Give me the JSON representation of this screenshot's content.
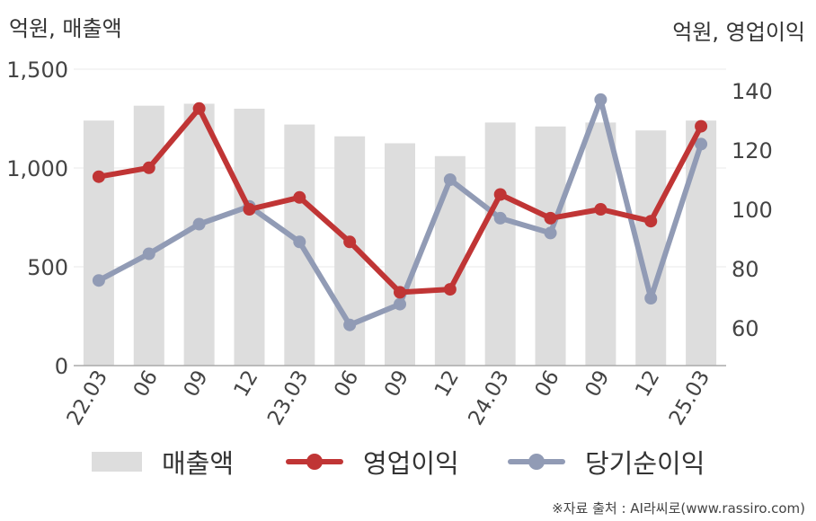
{
  "unit_left": "억원, 매출액",
  "unit_right": "억원, 영업이익",
  "source": "※자료 출처 : AI라씨로(www.rassiro.com)",
  "colors": {
    "revenue": "#dddddd",
    "operating_profit": "#c03535",
    "net_income": "#919bb5",
    "grid": "#e8e8e8",
    "axis": "#aaaaaa",
    "tick_text": "#444444"
  },
  "chart_data": {
    "type": "bar+line",
    "categories": [
      "22.03",
      "06",
      "09",
      "12",
      "23.03",
      "06",
      "09",
      "12",
      "24.03",
      "06",
      "09",
      "12",
      "25.03"
    ],
    "y_left": {
      "ticks": [
        "0",
        "500",
        "1,000",
        "1,500"
      ],
      "range": [
        0,
        1500
      ]
    },
    "y_right": {
      "ticks": [
        "60",
        "80",
        "100",
        "120",
        "140"
      ],
      "range": [
        50,
        150
      ]
    },
    "series": [
      {
        "name": "매출액",
        "type": "bar",
        "axis": "left",
        "values": [
          1240,
          1315,
          1325,
          1300,
          1220,
          1160,
          1125,
          1060,
          1230,
          1210,
          1230,
          1190,
          1240
        ]
      },
      {
        "name": "영업이익",
        "type": "line",
        "axis": "right",
        "values": [
          111,
          114,
          134,
          100,
          104,
          89,
          72,
          73,
          105,
          97,
          100,
          96,
          128
        ]
      },
      {
        "name": "당기순이익",
        "type": "line",
        "axis": "right",
        "values": [
          76,
          85,
          95,
          101,
          89,
          61,
          68,
          110,
          97,
          92,
          137,
          70,
          122
        ]
      }
    ],
    "grid": true,
    "legend_position": "bottom"
  }
}
